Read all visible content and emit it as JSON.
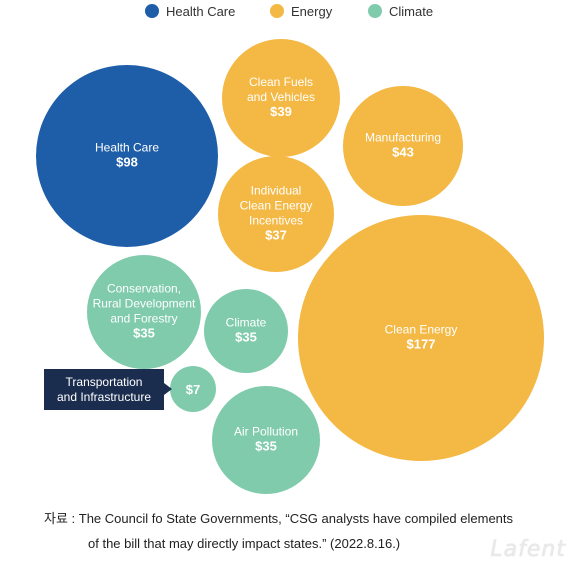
{
  "chart_data": {
    "type": "bubble",
    "categories": [
      "Health Care",
      "Energy",
      "Climate"
    ],
    "colors": {
      "Health Care": "#1e5ea8",
      "Energy": "#f4b844",
      "Climate": "#7fcbab"
    },
    "items": [
      {
        "label": "Health Care",
        "lines": [
          "Health Care"
        ],
        "value": 98,
        "display": "$98",
        "category": "Health Care"
      },
      {
        "label": "Clean Fuels and Vehicles",
        "lines": [
          "Clean Fuels",
          "and Vehicles"
        ],
        "value": 39,
        "display": "$39",
        "category": "Energy"
      },
      {
        "label": "Manufacturing",
        "lines": [
          "Manufacturing"
        ],
        "value": 43,
        "display": "$43",
        "category": "Energy"
      },
      {
        "label": "Individual Clean Energy Incentives",
        "lines": [
          "Individual",
          "Clean Energy",
          "Incentives"
        ],
        "value": 37,
        "display": "$37",
        "category": "Energy"
      },
      {
        "label": "Conservation, Rural Development and Forestry",
        "lines": [
          "Conservation,",
          "Rural Development",
          "and Forestry"
        ],
        "value": 35,
        "display": "$35",
        "category": "Climate"
      },
      {
        "label": "Climate",
        "lines": [
          "Climate"
        ],
        "value": 35,
        "display": "$35",
        "category": "Climate"
      },
      {
        "label": "Clean Energy",
        "lines": [
          "Clean Energy"
        ],
        "value": 177,
        "display": "$177",
        "category": "Energy"
      },
      {
        "label": "Transportation and Infrastructure",
        "lines": [],
        "value": 7,
        "display": "$7",
        "category": "Climate",
        "callout": [
          "Transportation",
          "and Infrastructure"
        ]
      },
      {
        "label": "Air Pollution",
        "lines": [
          "Air Pollution"
        ],
        "value": 35,
        "display": "$35",
        "category": "Climate"
      }
    ],
    "callout_color": "#1b2d4f"
  },
  "source": {
    "line1": "자료 : The Council fo State Governments, “CSG analysts have compiled elements",
    "line2": "of the bill that may directly impact states.” (2022.8.16.)"
  },
  "watermark": "Lafent"
}
